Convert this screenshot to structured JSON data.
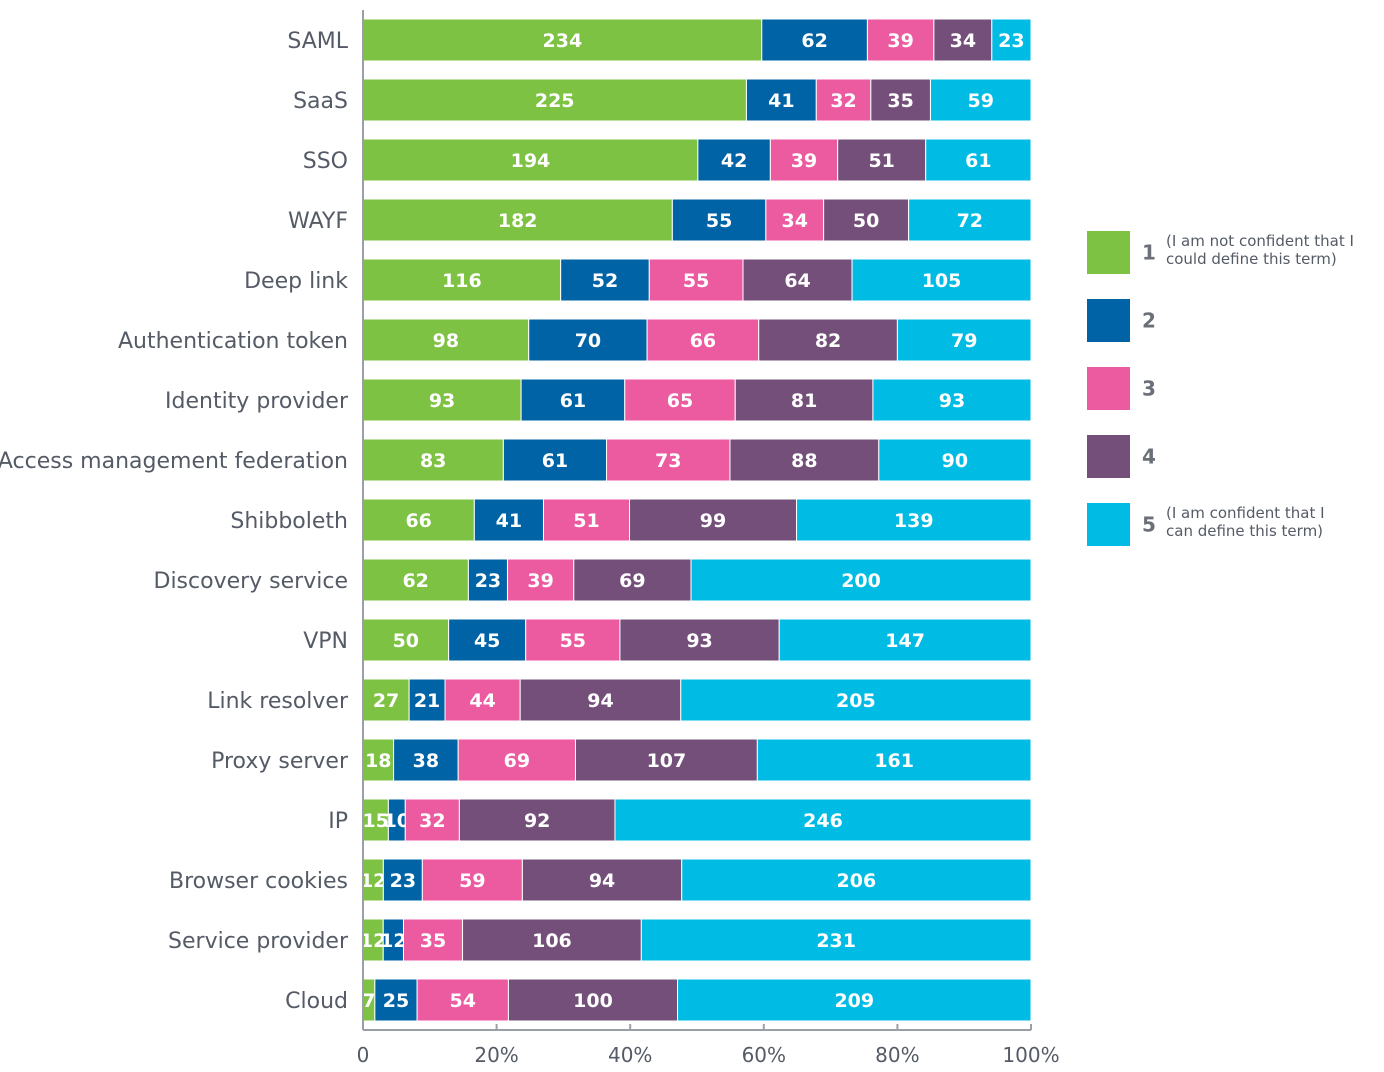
{
  "chart_data": {
    "type": "bar",
    "orientation": "horizontal",
    "stacked": "percent",
    "categories": [
      "SAML",
      "SaaS",
      "SSO",
      "WAYF",
      "Deep link",
      "Authentication token",
      "Identity provider",
      "Access management federation",
      "Shibboleth",
      "Discovery service",
      "VPN",
      "Link resolver",
      "Proxy server",
      "IP",
      "Browser cookies",
      "Service provider",
      "Cloud"
    ],
    "series": [
      {
        "name": "1",
        "values": [
          234,
          225,
          194,
          182,
          116,
          98,
          93,
          83,
          66,
          62,
          50,
          27,
          18,
          15,
          12,
          12,
          7
        ]
      },
      {
        "name": "2",
        "values": [
          62,
          41,
          42,
          55,
          52,
          70,
          61,
          61,
          41,
          23,
          45,
          21,
          38,
          10,
          23,
          12,
          25
        ]
      },
      {
        "name": "3",
        "values": [
          39,
          32,
          39,
          34,
          55,
          66,
          65,
          73,
          51,
          39,
          55,
          44,
          69,
          32,
          59,
          35,
          54
        ]
      },
      {
        "name": "4",
        "values": [
          34,
          35,
          51,
          50,
          64,
          82,
          81,
          88,
          99,
          69,
          93,
          94,
          107,
          92,
          94,
          106,
          100
        ]
      },
      {
        "name": "5",
        "values": [
          23,
          59,
          61,
          72,
          105,
          79,
          93,
          90,
          139,
          200,
          147,
          205,
          161,
          246,
          206,
          231,
          209
        ]
      }
    ],
    "colors": [
      "#7dc242",
      "#0063a6",
      "#ec5aa0",
      "#734f79",
      "#00bce4"
    ],
    "xaxis": {
      "ticks": [
        "0",
        "20%",
        "40%",
        "60%",
        "80%",
        "100%"
      ],
      "tick_values": [
        0,
        20,
        40,
        60,
        80,
        100
      ],
      "range": [
        0,
        100
      ]
    },
    "legend": {
      "position": "right",
      "items": [
        {
          "key": "1",
          "desc_lines": [
            "(I am not confident that I",
            "could define this term)"
          ]
        },
        {
          "key": "2",
          "desc_lines": []
        },
        {
          "key": "3",
          "desc_lines": []
        },
        {
          "key": "4",
          "desc_lines": []
        },
        {
          "key": "5",
          "desc_lines": [
            "(I am confident that I",
            "can define this term)"
          ]
        }
      ]
    },
    "grid": false
  }
}
